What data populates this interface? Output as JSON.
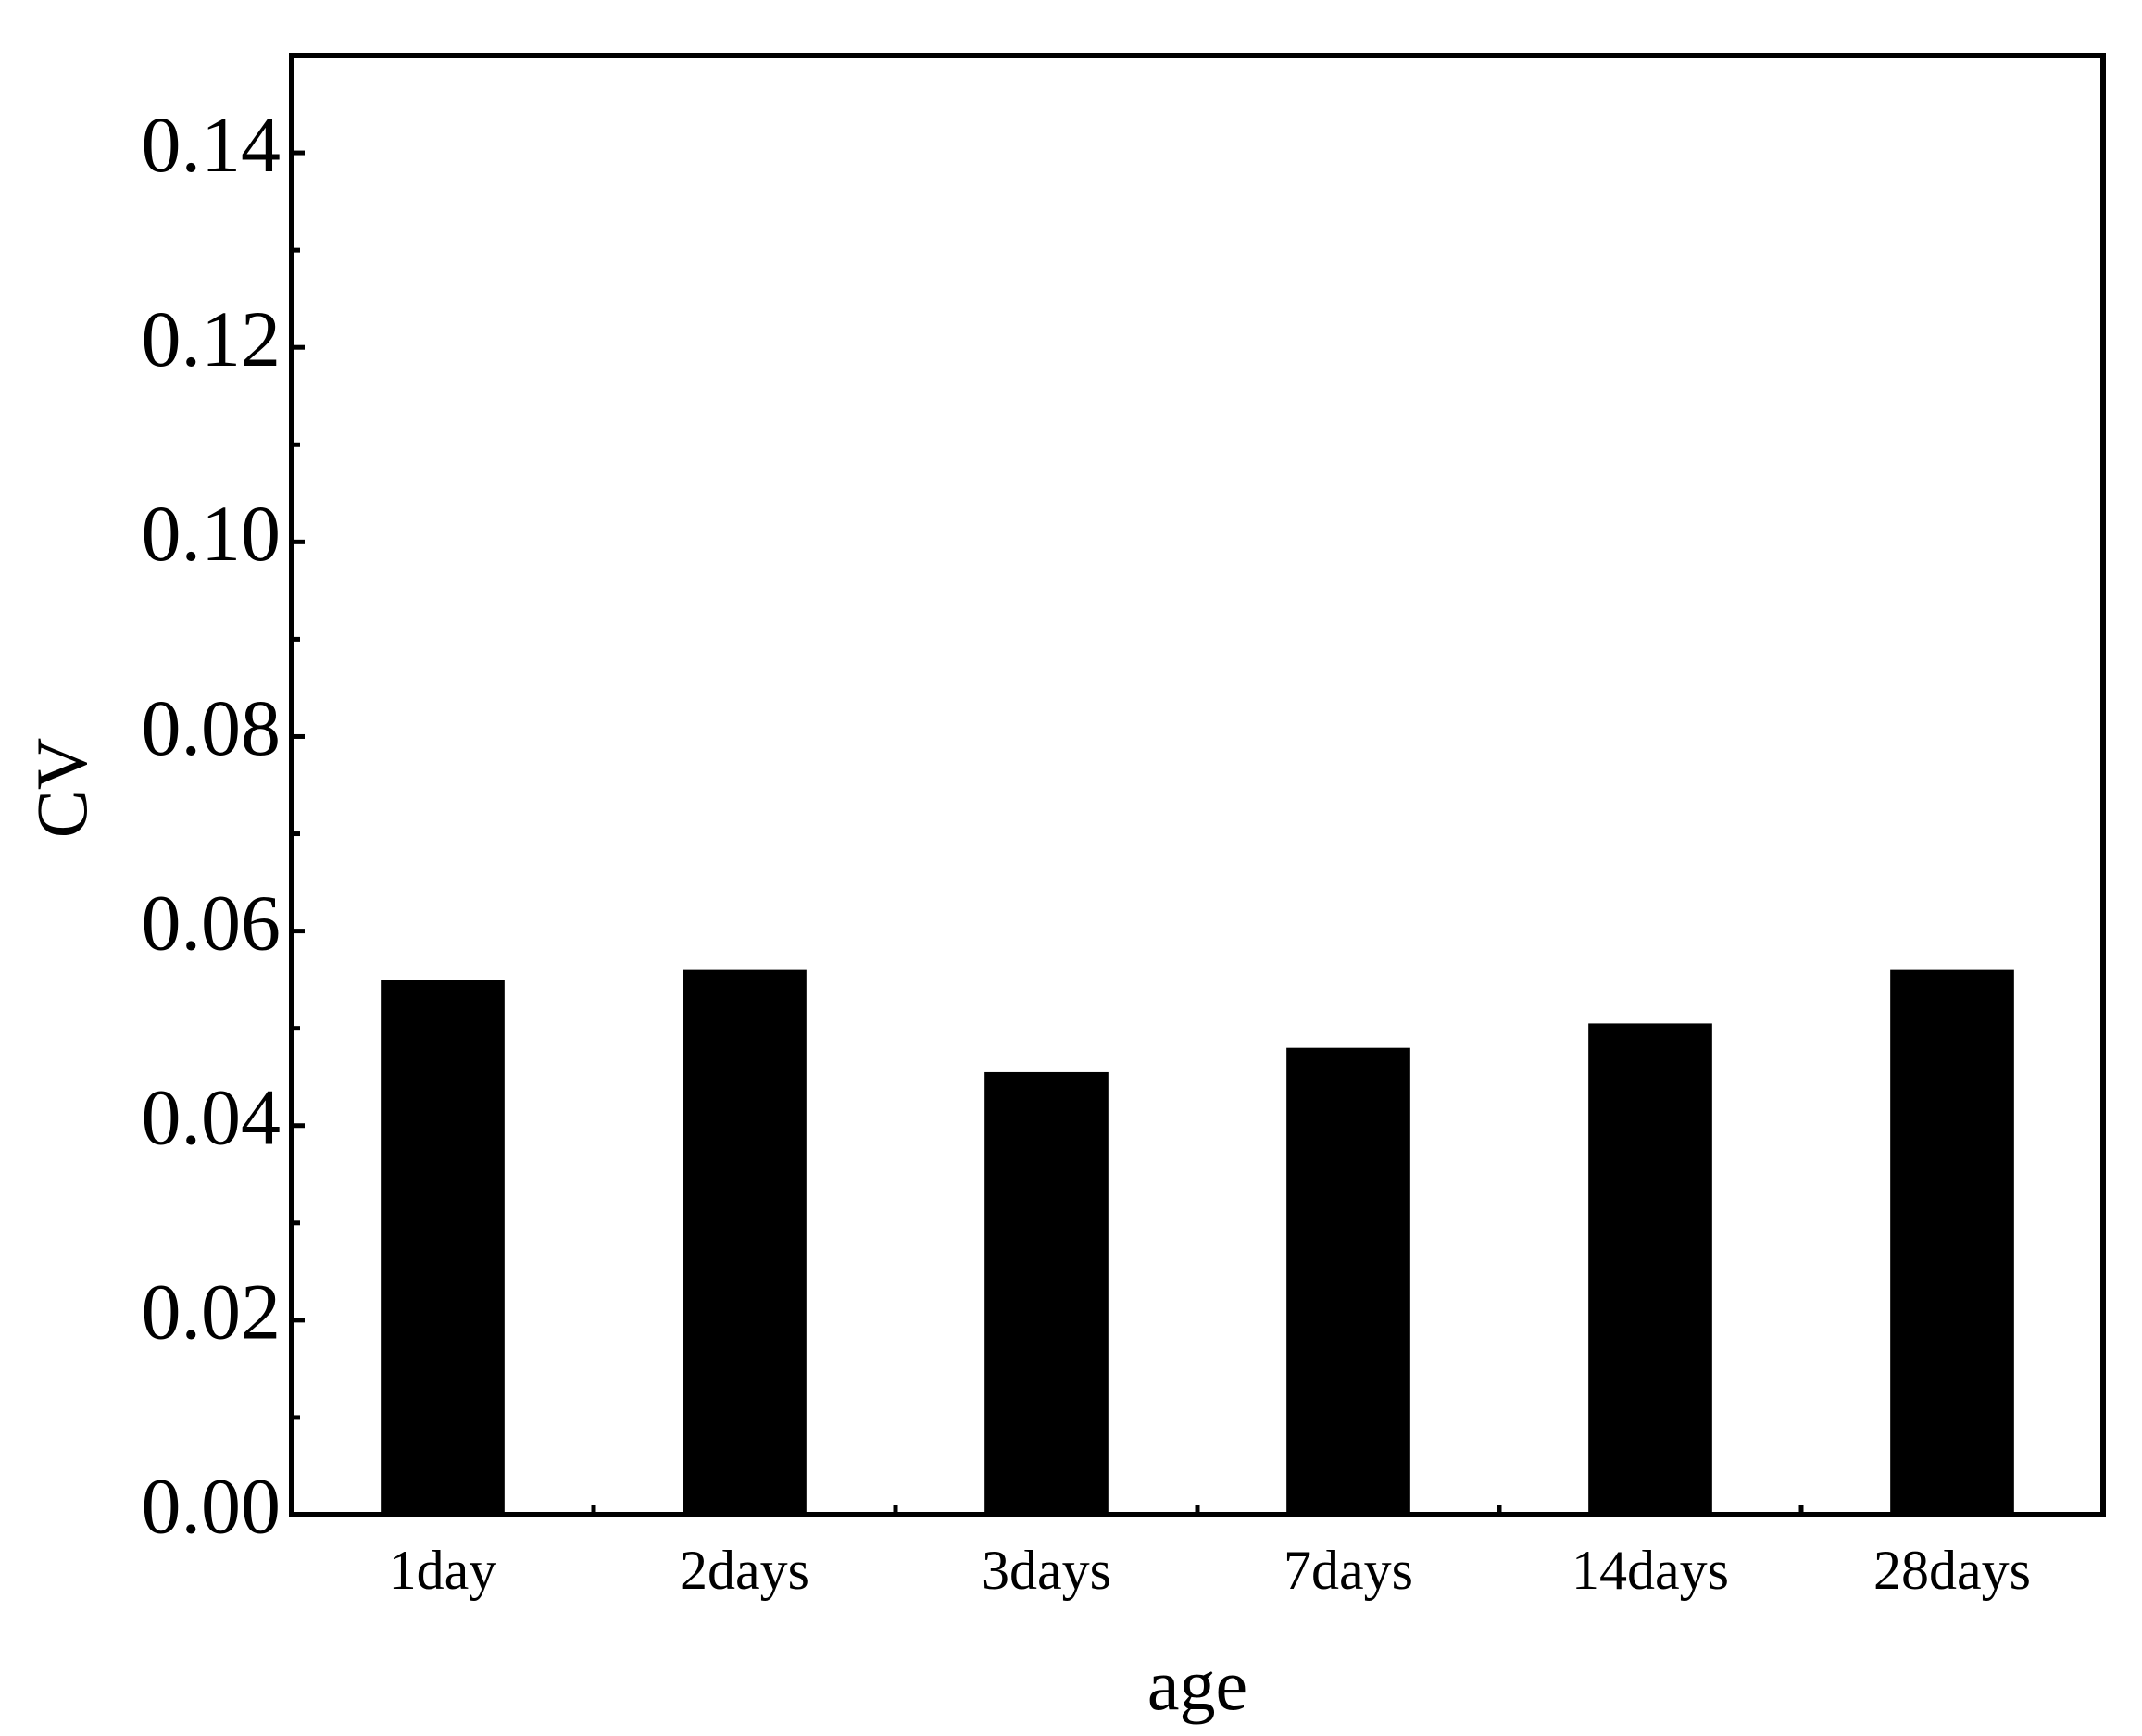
{
  "chart_data": {
    "type": "bar",
    "x_label": "age",
    "y_label": "CV",
    "categories": [
      "1day",
      "2days",
      "3days",
      "7days",
      "14days",
      "28days"
    ],
    "values": [
      0.055,
      0.056,
      0.0455,
      0.048,
      0.0505,
      0.056
    ],
    "color": "#000000",
    "ylim": [
      0,
      0.15
    ],
    "yticks": [
      {
        "value": 0,
        "label": "0.00"
      },
      0.02,
      0.04,
      0.06,
      0.08,
      {
        "value": 0.1,
        "label": "0.10"
      },
      0.12,
      0.14
    ],
    "grid": false
  }
}
